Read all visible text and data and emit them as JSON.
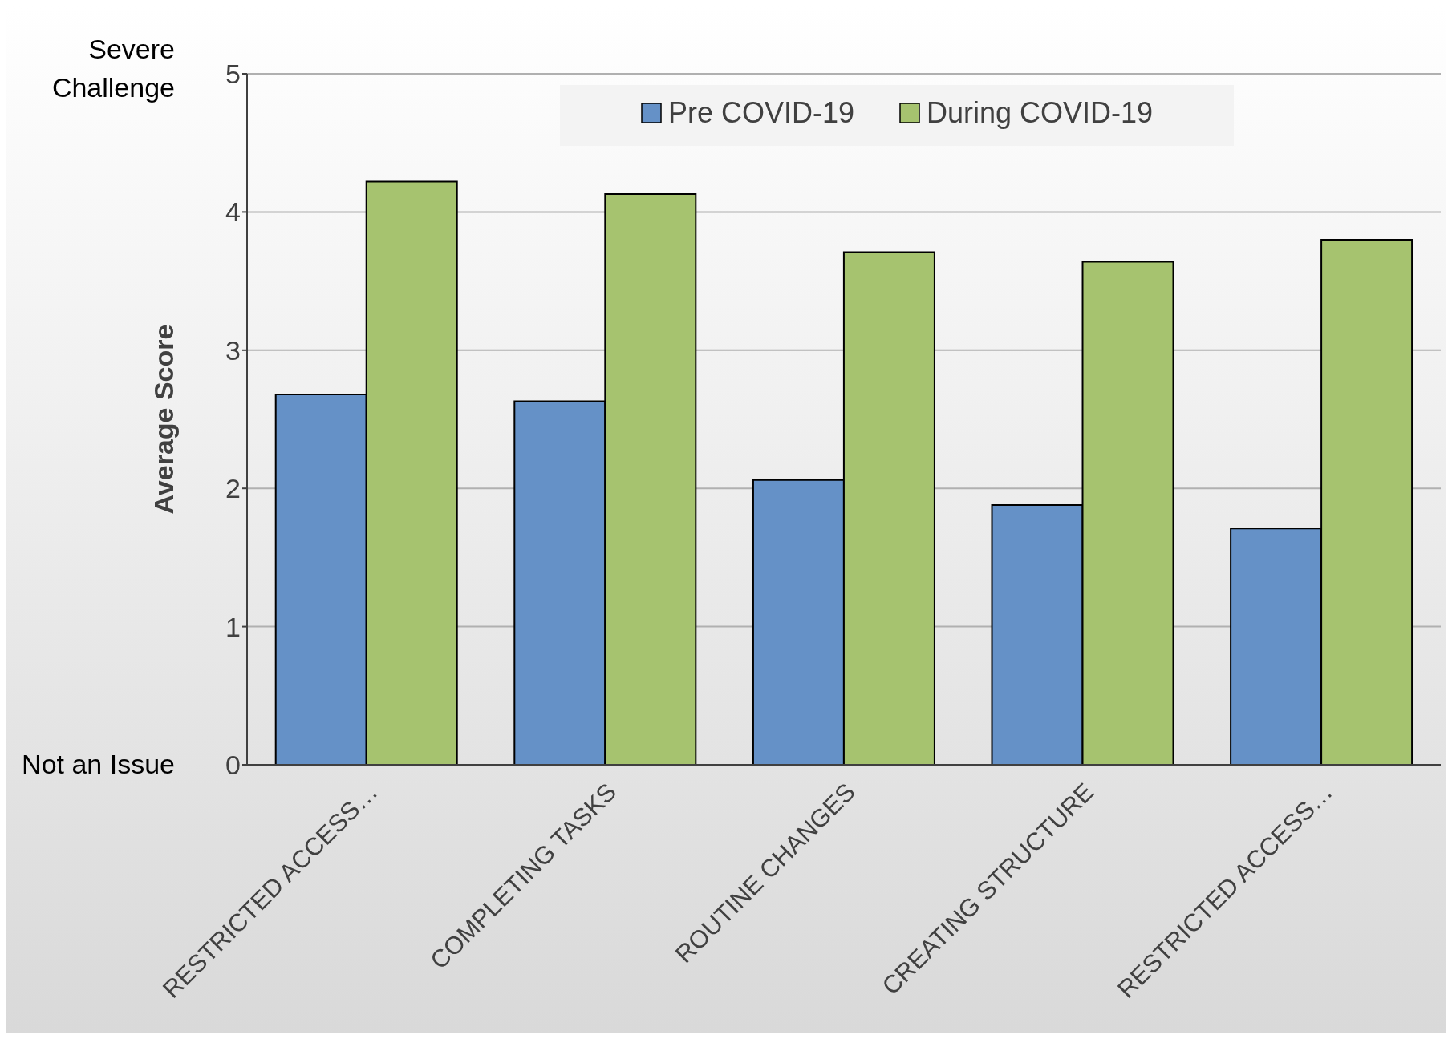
{
  "chart_data": {
    "type": "bar",
    "ylabel": "Average Score",
    "categories": [
      "RESTRICTED ACCESS…",
      "COMPLETING TASKS",
      "ROUTINE CHANGES",
      "CREATING STRUCTURE",
      "RESTRICTED ACCESS…"
    ],
    "series": [
      {
        "name": "Pre COVID-19",
        "color": "#6591c7",
        "values": [
          2.68,
          2.63,
          2.06,
          1.88,
          1.71
        ]
      },
      {
        "name": "During COVID-19",
        "color": "#a6c36f",
        "values": [
          4.22,
          4.13,
          3.71,
          3.64,
          3.8
        ]
      }
    ],
    "ylim": [
      0,
      5
    ],
    "yticks": [
      0,
      1,
      2,
      3,
      4,
      5
    ],
    "grid": "y",
    "legend": "top",
    "annotations": [
      "Severe Challenge",
      "Not an Issue"
    ]
  }
}
